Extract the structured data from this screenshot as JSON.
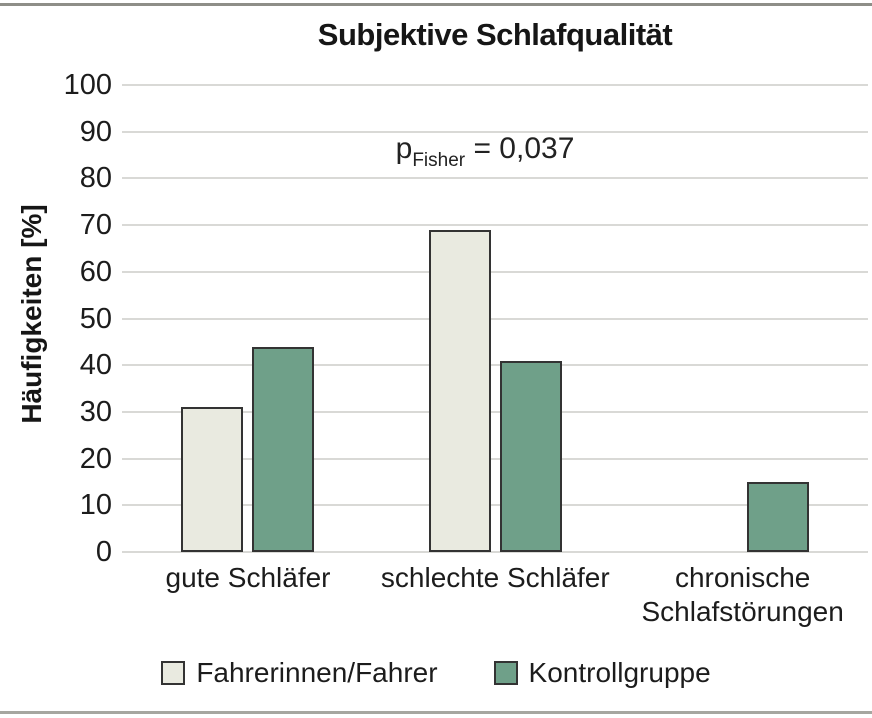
{
  "title": "Subjektive Schlafqualität",
  "y_axis": {
    "label": "Häufigkeiten [%]",
    "min": 0,
    "max": 100,
    "step": 10
  },
  "annotation": {
    "prefix": "p",
    "subscript": "Fisher",
    "rest": " = 0,037"
  },
  "chart_data": {
    "type": "bar",
    "title": "Subjektive Schlafqualität",
    "xlabel": "",
    "ylabel": "Häufigkeiten [%]",
    "ylim": [
      0,
      100
    ],
    "ytick_step": 10,
    "grid": true,
    "legend_position": "bottom",
    "annotation": "p_Fisher = 0,037",
    "categories": [
      "gute Schläfer",
      "schlechte Schläfer",
      "chronische Schlafstörungen"
    ],
    "series": [
      {
        "name": "Fahrerinnen/Fahrer",
        "color": "#E9EAE0",
        "border_color": "#333333",
        "values": [
          31,
          69,
          0
        ]
      },
      {
        "name": "Kontrollgruppe",
        "color": "#6FA089",
        "border_color": "#333333",
        "values": [
          44,
          41,
          15
        ]
      }
    ]
  },
  "colors": {
    "background": "#FFFFFF",
    "gridline": "#D9D9D6",
    "text": "#1C1C1C",
    "top_border": "#8E8E88",
    "bottom_border": "#A6A6A0"
  }
}
